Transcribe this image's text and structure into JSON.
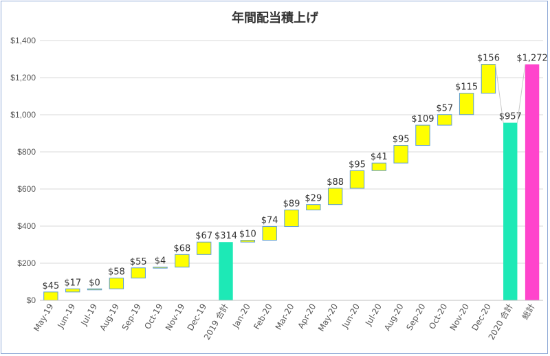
{
  "chart_data": {
    "type": "bar",
    "title": "年間配当積上げ",
    "xlabel": "",
    "ylabel": "",
    "ylim": [
      0,
      1400
    ],
    "yticks": [
      0,
      200,
      400,
      600,
      800,
      1000,
      1200,
      1400
    ],
    "ytick_labels": [
      "$0",
      "$200",
      "$400",
      "$600",
      "$800",
      "$1,000",
      "$1,200",
      "$1,400"
    ],
    "grid": true,
    "categories": [
      "May-19",
      "Jun-19",
      "Jul-19",
      "Aug-19",
      "Sep-19",
      "Oct-19",
      "Nov-19",
      "Dec-19",
      "2019 合計",
      "Jan-20",
      "Feb-20",
      "Mar-20",
      "Apr-20",
      "May-20",
      "Jun-20",
      "Jul-20",
      "Aug-20",
      "Sep-20",
      "Oct-20",
      "Nov-20",
      "Dec-20",
      "2020 合計",
      "総計"
    ],
    "values": [
      45,
      17,
      0,
      58,
      55,
      4,
      68,
      67,
      314,
      10,
      74,
      89,
      29,
      88,
      95,
      41,
      95,
      109,
      57,
      115,
      156,
      957,
      1272
    ],
    "labels": [
      "$45",
      "$17",
      "$0",
      "$58",
      "$55",
      "$4",
      "$68",
      "$67",
      "$314",
      "$10",
      "$74",
      "$89",
      "$29",
      "$88",
      "$95",
      "$41",
      "$95",
      "$109",
      "$57",
      "$115",
      "$156",
      "$957",
      "$1,272"
    ],
    "kinds": [
      "step",
      "step",
      "step",
      "step",
      "step",
      "step",
      "step",
      "step",
      "total2019",
      "step",
      "step",
      "step",
      "step",
      "step",
      "step",
      "step",
      "step",
      "step",
      "step",
      "step",
      "step",
      "total2020",
      "grand"
    ],
    "colors": {
      "step": "#ffff00",
      "step_border": "#5b9bd5",
      "total2019": "#1de9b6",
      "total2020": "#1de9b6",
      "grand": "#ff44cc",
      "grid": "#d9d9d9"
    }
  }
}
